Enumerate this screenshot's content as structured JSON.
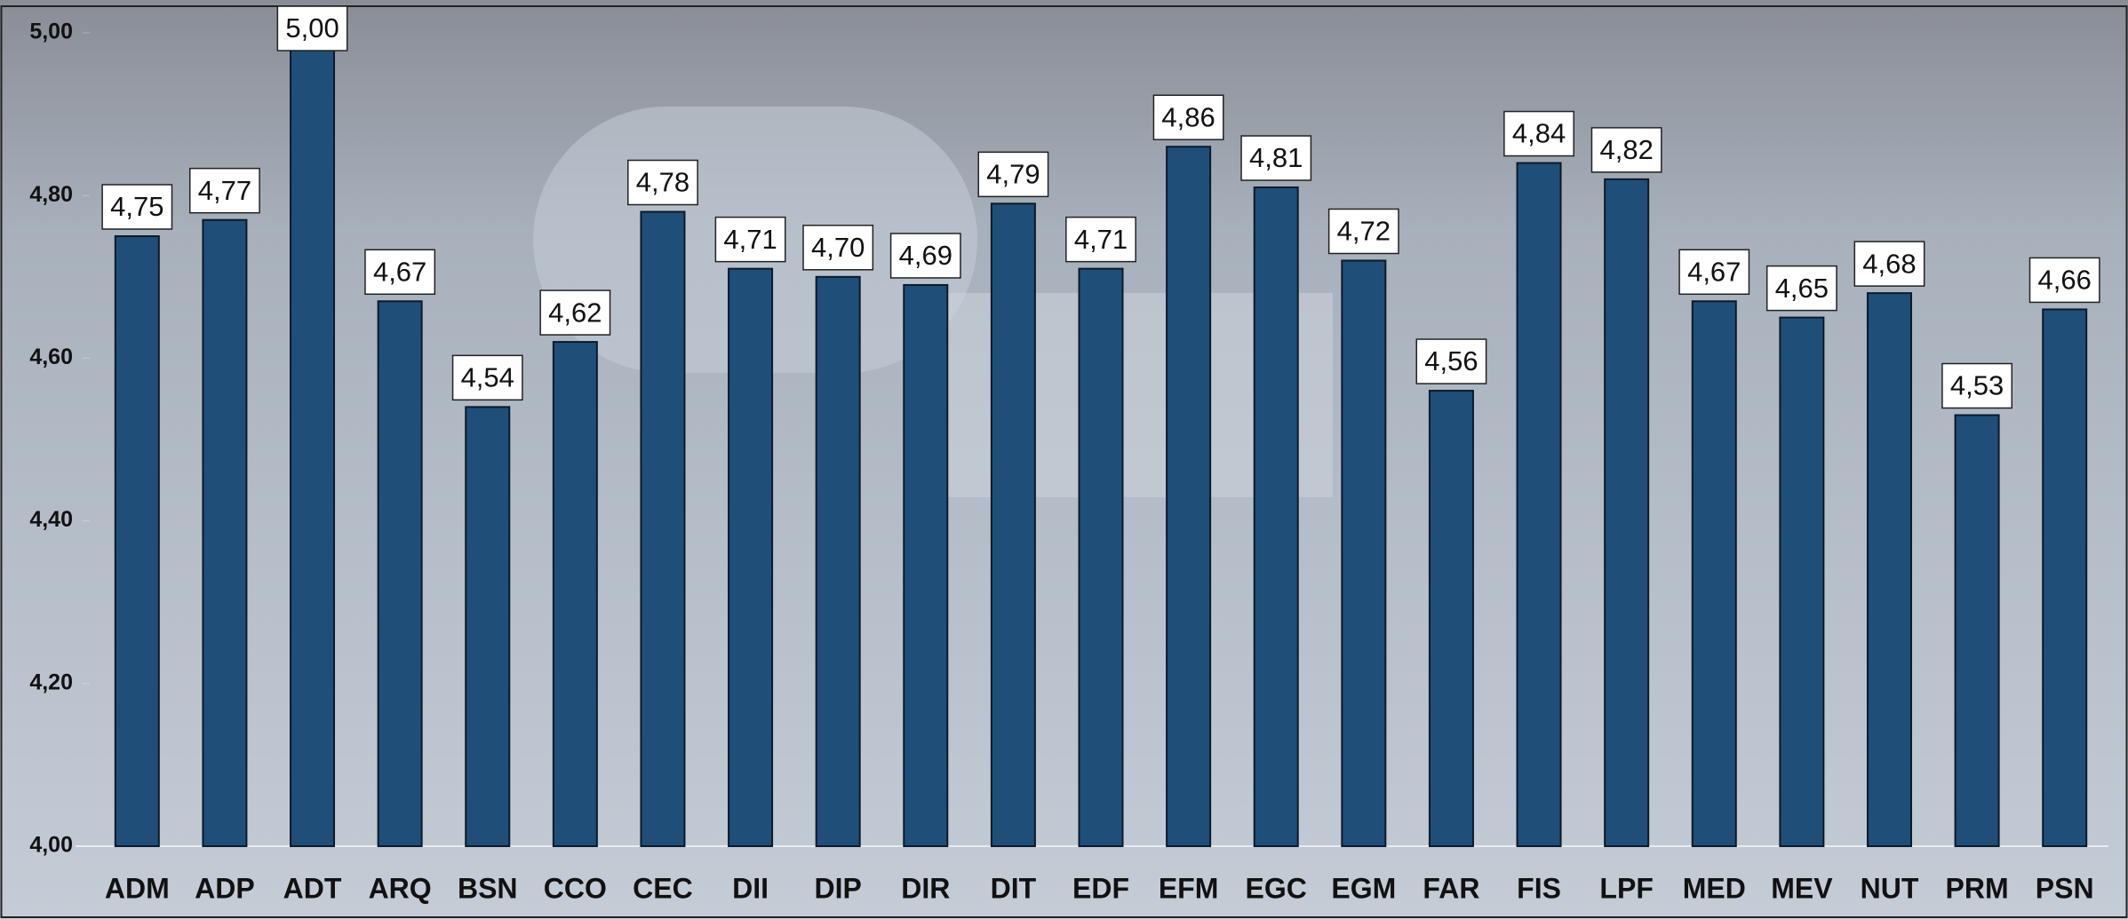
{
  "chart_data": {
    "type": "bar",
    "categories": [
      "ADM",
      "ADP",
      "ADT",
      "ARQ",
      "BSN",
      "CCO",
      "CEC",
      "DII",
      "DIP",
      "DIR",
      "DIT",
      "EDF",
      "EFM",
      "EGC",
      "EGM",
      "FAR",
      "FIS",
      "LPF",
      "MED",
      "MEV",
      "NUT",
      "PRM",
      "PSN"
    ],
    "values": [
      4.75,
      4.77,
      5.0,
      4.67,
      4.54,
      4.62,
      4.78,
      4.71,
      4.7,
      4.69,
      4.79,
      4.71,
      4.86,
      4.81,
      4.72,
      4.56,
      4.84,
      4.82,
      4.67,
      4.65,
      4.68,
      4.53,
      4.66
    ],
    "value_labels": [
      "4,75",
      "4,77",
      "5,00",
      "4,67",
      "4,54",
      "4,62",
      "4,78",
      "4,71",
      "4,70",
      "4,69",
      "4,79",
      "4,71",
      "4,86",
      "4,81",
      "4,72",
      "4,56",
      "4,84",
      "4,82",
      "4,67",
      "4,65",
      "4,68",
      "4,53",
      "4,66"
    ],
    "color": "#1f4e79",
    "ylim": [
      4.0,
      5.0
    ],
    "yticks": [
      {
        "value": 4.0,
        "label": "4,00"
      },
      {
        "value": 4.2,
        "label": "4,20"
      },
      {
        "value": 4.4,
        "label": "4,40"
      },
      {
        "value": 4.6,
        "label": "4,60"
      },
      {
        "value": 4.8,
        "label": "4,80"
      },
      {
        "value": 5.0,
        "label": "5,00"
      }
    ],
    "grid": false
  }
}
